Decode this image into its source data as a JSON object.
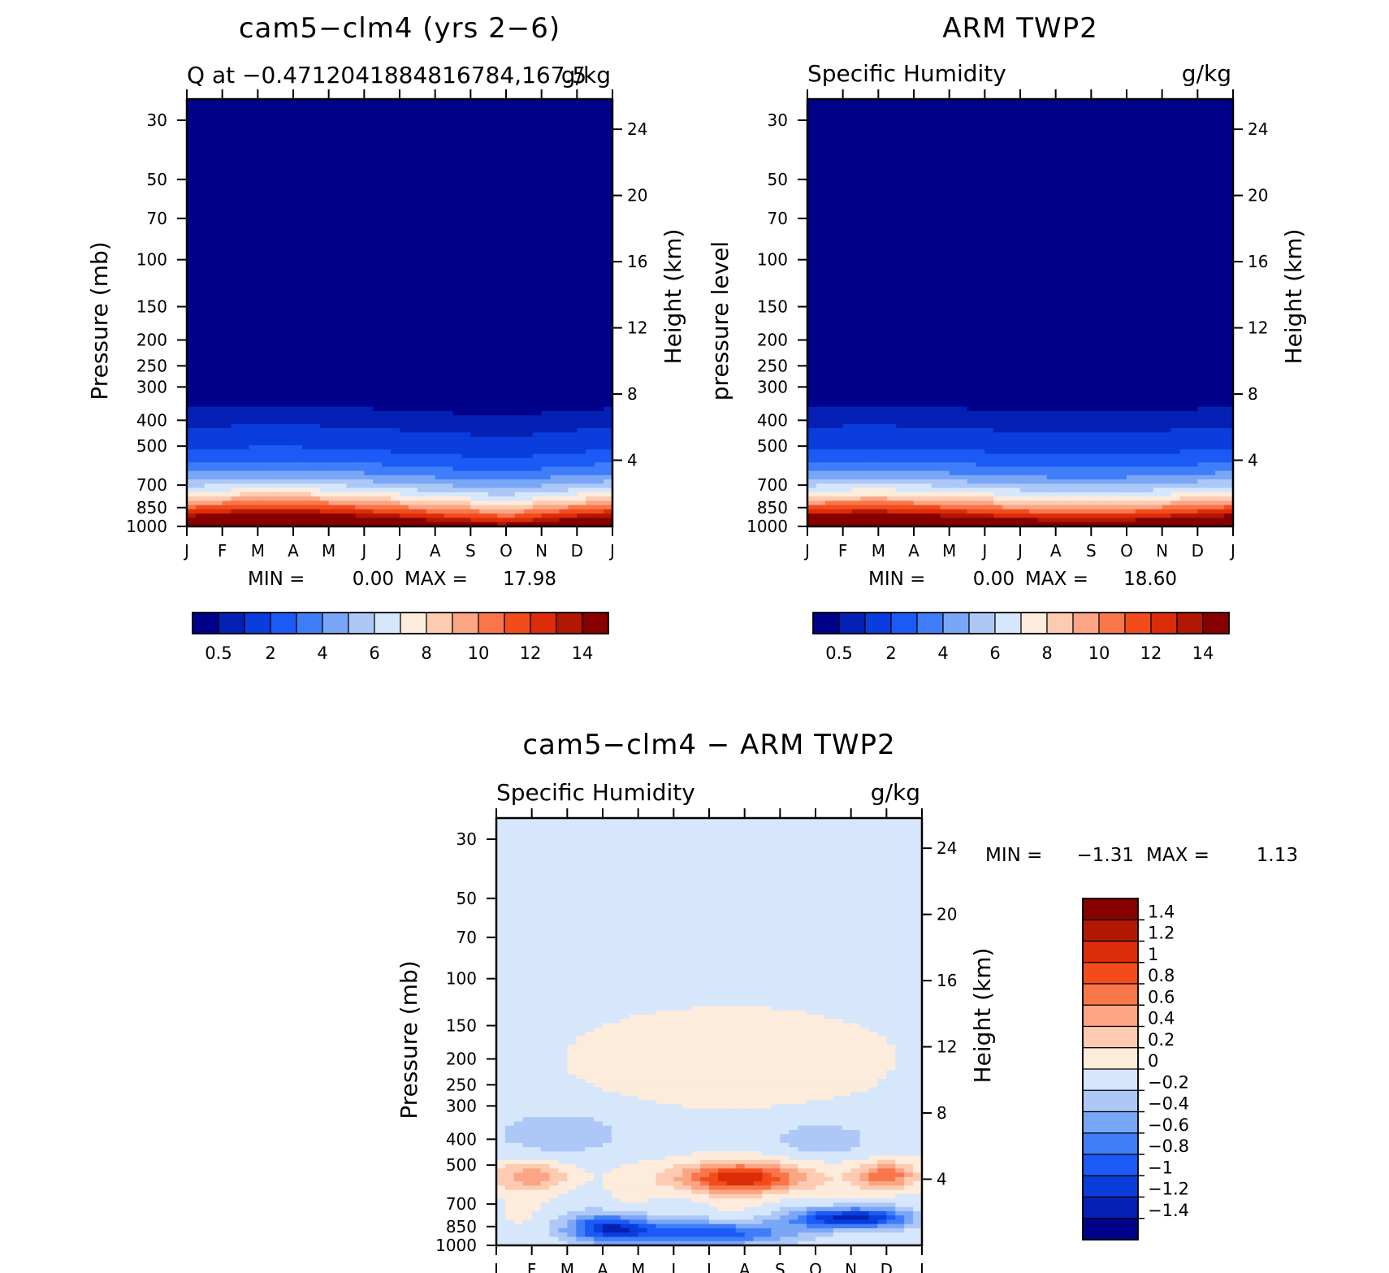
{
  "chart_data": [
    {
      "type": "heatmap",
      "title": "cam5−clm4 (yrs 2−6)",
      "subtitle_left": "Q at −0.4712041884816784,167.5",
      "subtitle_right": "g/kg",
      "ylabel": "Pressure (mb)",
      "ylabel_right": "Height (km)",
      "x_ticks": [
        "J",
        "F",
        "M",
        "A",
        "M",
        "J",
        "J",
        "A",
        "S",
        "O",
        "N",
        "D",
        "J"
      ],
      "y_ticks": [
        30,
        50,
        70,
        100,
        150,
        200,
        250,
        300,
        400,
        500,
        700,
        850,
        1000
      ],
      "y_ticks_right": [
        24,
        20,
        16,
        12,
        8,
        4
      ],
      "ylim": [
        25,
        1000
      ],
      "y_scale": "log",
      "levels": [
        0.5,
        1,
        2,
        3,
        4,
        5,
        6,
        7,
        8,
        9,
        10,
        11,
        12,
        13,
        14
      ],
      "colorbar_labels": [
        "0.5",
        "2",
        "4",
        "6",
        "8",
        "10",
        "12",
        "14"
      ],
      "colors": [
        "#00038a",
        "#0520b4",
        "#0a3ddc",
        "#1b5af6",
        "#3f7ef8",
        "#7aa6f7",
        "#adc8f6",
        "#d6e6fb",
        "#fdebdc",
        "#fccbb1",
        "#fba585",
        "#f9764a",
        "#f34c1c",
        "#dc2d0a",
        "#b21704",
        "#860000"
      ],
      "min_label": "MIN =",
      "min": "0.00",
      "max_label": "MAX =",
      "max": "17.98"
    },
    {
      "type": "heatmap",
      "title": "ARM TWP2",
      "subtitle_left": "Specific Humidity",
      "subtitle_right": "g/kg",
      "ylabel": "pressure level",
      "ylabel_right": "Height (km)",
      "x_ticks": [
        "J",
        "F",
        "M",
        "A",
        "M",
        "J",
        "J",
        "A",
        "S",
        "O",
        "N",
        "D",
        "J"
      ],
      "y_ticks": [
        30,
        50,
        70,
        100,
        150,
        200,
        250,
        300,
        400,
        500,
        700,
        850,
        1000
      ],
      "y_ticks_right": [
        24,
        20,
        16,
        12,
        8,
        4
      ],
      "ylim": [
        25,
        1000
      ],
      "y_scale": "log",
      "levels": [
        0.5,
        1,
        2,
        3,
        4,
        5,
        6,
        7,
        8,
        9,
        10,
        11,
        12,
        13,
        14
      ],
      "colorbar_labels": [
        "0.5",
        "2",
        "4",
        "6",
        "8",
        "10",
        "12",
        "14"
      ],
      "colors": [
        "#00038a",
        "#0520b4",
        "#0a3ddc",
        "#1b5af6",
        "#3f7ef8",
        "#7aa6f7",
        "#adc8f6",
        "#d6e6fb",
        "#fdebdc",
        "#fccbb1",
        "#fba585",
        "#f9764a",
        "#f34c1c",
        "#dc2d0a",
        "#b21704",
        "#860000"
      ],
      "min_label": "MIN =",
      "min": "0.00",
      "max_label": "MAX =",
      "max": "18.60"
    },
    {
      "type": "heatmap",
      "title": "cam5−clm4 − ARM TWP2",
      "subtitle_left": "Specific Humidity",
      "subtitle_right": "g/kg",
      "ylabel": "Pressure (mb)",
      "ylabel_right": "Height (km)",
      "x_ticks": [
        "J",
        "F",
        "M",
        "A",
        "M",
        "J",
        "J",
        "A",
        "S",
        "O",
        "N",
        "D",
        "J"
      ],
      "y_ticks": [
        30,
        50,
        70,
        100,
        150,
        200,
        250,
        300,
        400,
        500,
        700,
        850,
        1000
      ],
      "y_ticks_right": [
        24,
        20,
        16,
        12,
        8,
        4
      ],
      "ylim": [
        25,
        1000
      ],
      "y_scale": "log",
      "levels": [
        -1.4,
        -1.2,
        -1,
        -0.8,
        -0.6,
        -0.4,
        -0.2,
        0,
        0.2,
        0.4,
        0.6,
        0.8,
        1,
        1.2,
        1.4
      ],
      "colorbar_labels": [
        "1.4",
        "1.2",
        "1",
        "0.8",
        "0.6",
        "0.4",
        "0.2",
        "0",
        "−0.2",
        "−0.4",
        "−0.6",
        "−0.8",
        "−1",
        "−1.2",
        "−1.4"
      ],
      "colors": [
        "#00038a",
        "#0520b4",
        "#0a3ddc",
        "#1b5af6",
        "#3f7ef8",
        "#7aa6f7",
        "#adc8f6",
        "#d6e6fb",
        "#fdebdc",
        "#fccbb1",
        "#fba585",
        "#f9764a",
        "#f34c1c",
        "#dc2d0a",
        "#b21704",
        "#860000"
      ],
      "min_label": "MIN =",
      "min": "−1.31",
      "max_label": "MAX =",
      "max": "1.13"
    }
  ]
}
